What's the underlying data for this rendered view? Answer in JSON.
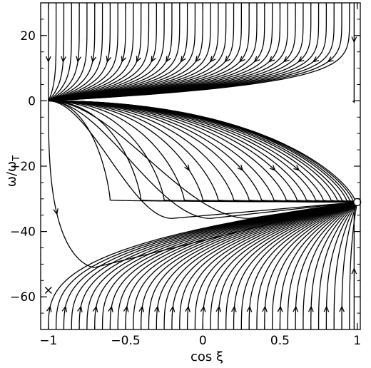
{
  "chart_data": {
    "type": "line",
    "title": "",
    "xlabel": "cos ξ",
    "ylabel_main": "ω/ω",
    "ylabel_sub": "T",
    "xlim": [
      -1.05,
      1.02
    ],
    "ylim": [
      -70,
      30
    ],
    "xticks": [
      -1,
      -0.5,
      0,
      0.5,
      1
    ],
    "xtick_labels": [
      "−1",
      "−0.5",
      "0",
      "0.5",
      "1"
    ],
    "yticks": [
      20,
      0,
      -20,
      -40,
      -60
    ],
    "ytick_labels": [
      "20",
      "0",
      "−20",
      "−40",
      "−60"
    ],
    "grid": false,
    "legend": "none",
    "fixed_points": [
      {
        "kind": "stable",
        "marker": "circle",
        "x": 1.0,
        "y": -31
      },
      {
        "kind": "unstable",
        "marker": "cross",
        "x": -1.0,
        "y": -58
      }
    ],
    "families": [
      {
        "name_desc": "upper-top",
        "x0": [
          -1.0,
          -0.95,
          -0.9,
          -0.85,
          -0.8,
          -0.75,
          -0.7,
          -0.65,
          -0.6,
          -0.55,
          -0.5,
          -0.45,
          -0.4,
          -0.35,
          -0.3,
          -0.25,
          -0.2,
          -0.15,
          -0.1,
          -0.05,
          0.0,
          0.05,
          0.1,
          0.15,
          0.2,
          0.25,
          0.3,
          0.35,
          0.4,
          0.45,
          0.5,
          0.55,
          0.6,
          0.65,
          0.7,
          0.75,
          0.8,
          0.85,
          0.9,
          0.95,
          0.98
        ],
        "y_start": 30,
        "y_end": 0,
        "arrow_y": 12
      },
      {
        "name_desc": "middle-fan",
        "x_end": [
          -1.0,
          -0.6,
          -0.4,
          -0.25,
          -0.12,
          0.0,
          0.1,
          0.2,
          0.3,
          0.38,
          0.46,
          0.54,
          0.61,
          0.67,
          0.73,
          0.78,
          0.83,
          0.87,
          0.9,
          0.93,
          0.95,
          0.97,
          0.985
        ],
        "y_start": 0,
        "y_end": -31
      },
      {
        "name_desc": "lower-bottom",
        "x0": [
          -1.0,
          -0.95,
          -0.9,
          -0.85,
          -0.8,
          -0.75,
          -0.7,
          -0.65,
          -0.6,
          -0.55,
          -0.5,
          -0.45,
          -0.4,
          -0.35,
          -0.3,
          -0.25,
          -0.2,
          -0.15,
          -0.1,
          -0.05,
          0.0,
          0.05,
          0.1,
          0.15,
          0.2,
          0.25,
          0.3,
          0.35,
          0.4,
          0.45,
          0.5,
          0.55,
          0.6,
          0.65,
          0.7,
          0.75,
          0.8,
          0.85,
          0.9,
          0.95,
          0.98
        ],
        "y_start": -70,
        "arrow_y": -63
      }
    ]
  }
}
